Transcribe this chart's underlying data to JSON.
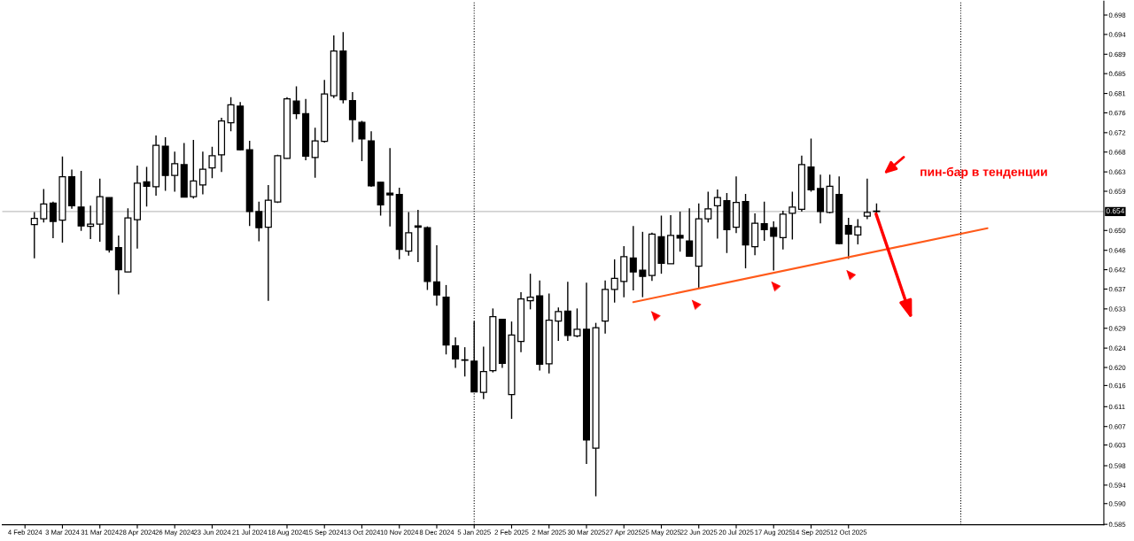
{
  "chart_data": {
    "type": "candlestick",
    "x": [
      "2024-02-11",
      "2024-02-18",
      "2024-02-25",
      "2024-03-03",
      "2024-03-10",
      "2024-03-17",
      "2024-03-24",
      "2024-03-31",
      "2024-04-07",
      "2024-04-14",
      "2024-04-21",
      "2024-04-28",
      "2024-05-05",
      "2024-05-12",
      "2024-05-19",
      "2024-05-26",
      "2024-06-02",
      "2024-06-09",
      "2024-06-16",
      "2024-06-23",
      "2024-06-30",
      "2024-07-07",
      "2024-07-14",
      "2024-07-21",
      "2024-07-28",
      "2024-08-04",
      "2024-08-11",
      "2024-08-18",
      "2024-08-25",
      "2024-09-01",
      "2024-09-08",
      "2024-09-15",
      "2024-09-22",
      "2024-09-29",
      "2024-10-06",
      "2024-10-13",
      "2024-10-20",
      "2024-10-27",
      "2024-11-03",
      "2024-11-10",
      "2024-11-17",
      "2024-11-24",
      "2024-12-01",
      "2024-12-08",
      "2024-12-15",
      "2024-12-22",
      "2024-12-29",
      "2025-01-05",
      "2025-01-12",
      "2025-01-19",
      "2025-01-26",
      "2025-02-02",
      "2025-02-09",
      "2025-02-16",
      "2025-02-23",
      "2025-03-02",
      "2025-03-09",
      "2025-03-16",
      "2025-03-23",
      "2025-03-30",
      "2025-04-06",
      "2025-04-13",
      "2025-04-20",
      "2025-04-27",
      "2025-05-04",
      "2025-05-11",
      "2025-05-18",
      "2025-05-25",
      "2025-06-01",
      "2025-06-08",
      "2025-06-15",
      "2025-06-22",
      "2025-06-29",
      "2025-07-06",
      "2025-07-13",
      "2025-07-20",
      "2025-07-27",
      "2025-08-03",
      "2025-08-10",
      "2025-08-17",
      "2025-08-24",
      "2025-08-31",
      "2025-09-07",
      "2025-09-14",
      "2025-09-21",
      "2025-09-28",
      "2025-10-05",
      "2025-10-12",
      "2025-10-19",
      "2025-10-26",
      "2025-11-02"
    ],
    "ohlc": [
      [
        0.6515,
        0.6543,
        0.644,
        0.6529
      ],
      [
        0.6528,
        0.6594,
        0.652,
        0.6561
      ],
      [
        0.6563,
        0.6566,
        0.6485,
        0.6522
      ],
      [
        0.6525,
        0.6666,
        0.6475,
        0.6621
      ],
      [
        0.6621,
        0.6637,
        0.655,
        0.6557
      ],
      [
        0.6554,
        0.6634,
        0.6501,
        0.6512
      ],
      [
        0.6511,
        0.6557,
        0.6483,
        0.6516
      ],
      [
        0.6516,
        0.6617,
        0.6477,
        0.6577
      ],
      [
        0.6575,
        0.6575,
        0.6453,
        0.6459
      ],
      [
        0.6464,
        0.6491,
        0.636,
        0.6415
      ],
      [
        0.641,
        0.6551,
        0.641,
        0.653
      ],
      [
        0.6526,
        0.6646,
        0.6462,
        0.6607
      ],
      [
        0.661,
        0.6643,
        0.6555,
        0.66
      ],
      [
        0.6599,
        0.6713,
        0.6579,
        0.6691
      ],
      [
        0.6689,
        0.6709,
        0.659,
        0.6624
      ],
      [
        0.6624,
        0.6677,
        0.6588,
        0.665
      ],
      [
        0.6648,
        0.6696,
        0.6576,
        0.6576
      ],
      [
        0.6577,
        0.6703,
        0.6573,
        0.6612
      ],
      [
        0.6603,
        0.6677,
        0.6582,
        0.6638
      ],
      [
        0.6641,
        0.6688,
        0.6618,
        0.6668
      ],
      [
        0.667,
        0.6752,
        0.6632,
        0.6745
      ],
      [
        0.6741,
        0.6798,
        0.6722,
        0.6781
      ],
      [
        0.6778,
        0.6787,
        0.668,
        0.6681
      ],
      [
        0.6681,
        0.6701,
        0.6512,
        0.6544
      ],
      [
        0.6544,
        0.6566,
        0.6478,
        0.6508
      ],
      [
        0.6509,
        0.6603,
        0.6346,
        0.6569
      ],
      [
        0.6565,
        0.667,
        0.6563,
        0.6668
      ],
      [
        0.6662,
        0.6798,
        0.6661,
        0.6794
      ],
      [
        0.6789,
        0.6822,
        0.6749,
        0.6761
      ],
      [
        0.6761,
        0.6794,
        0.6658,
        0.6667
      ],
      [
        0.6664,
        0.673,
        0.6619,
        0.6701
      ],
      [
        0.67,
        0.6836,
        0.6697,
        0.6805
      ],
      [
        0.6801,
        0.6935,
        0.6796,
        0.69
      ],
      [
        0.69,
        0.6942,
        0.6784,
        0.6792
      ],
      [
        0.679,
        0.6809,
        0.6698,
        0.6748
      ],
      [
        0.6742,
        0.6745,
        0.6656,
        0.6705
      ],
      [
        0.6701,
        0.6722,
        0.6599,
        0.6601
      ],
      [
        0.6609,
        0.6609,
        0.6535,
        0.6559
      ],
      [
        0.6585,
        0.6685,
        0.6511,
        0.6581
      ],
      [
        0.6582,
        0.6597,
        0.6438,
        0.646
      ],
      [
        0.6456,
        0.6543,
        0.6446,
        0.6497
      ],
      [
        0.6512,
        0.6548,
        0.6432,
        0.6509
      ],
      [
        0.6508,
        0.6511,
        0.637,
        0.6389
      ],
      [
        0.6388,
        0.6469,
        0.6335,
        0.6359
      ],
      [
        0.6354,
        0.6381,
        0.6227,
        0.6248
      ],
      [
        0.6246,
        0.6265,
        0.6197,
        0.6217
      ],
      [
        0.6215,
        0.6243,
        0.6178,
        0.6214
      ],
      [
        0.6212,
        0.63,
        0.6143,
        0.6144
      ],
      [
        0.6143,
        0.6244,
        0.6128,
        0.6189
      ],
      [
        0.6191,
        0.6329,
        0.6187,
        0.6311
      ],
      [
        0.6305,
        0.6305,
        0.6197,
        0.6207
      ],
      [
        0.6138,
        0.63,
        0.6084,
        0.627
      ],
      [
        0.6256,
        0.6365,
        0.6232,
        0.635
      ],
      [
        0.6346,
        0.6406,
        0.6327,
        0.6354
      ],
      [
        0.6357,
        0.6391,
        0.6191,
        0.6205
      ],
      [
        0.6206,
        0.6362,
        0.6185,
        0.6303
      ],
      [
        0.6301,
        0.6331,
        0.6257,
        0.6322
      ],
      [
        0.6323,
        0.6388,
        0.6257,
        0.6269
      ],
      [
        0.6268,
        0.6329,
        0.6265,
        0.6283
      ],
      [
        0.6283,
        0.6386,
        0.5984,
        0.6037
      ],
      [
        0.6019,
        0.6297,
        0.5912,
        0.6286
      ],
      [
        0.6301,
        0.6391,
        0.6273,
        0.6371
      ],
      [
        0.6371,
        0.6438,
        0.6342,
        0.6396
      ],
      [
        0.6389,
        0.6467,
        0.6354,
        0.6444
      ],
      [
        0.6441,
        0.6512,
        0.6369,
        0.641
      ],
      [
        0.6414,
        0.6499,
        0.6354,
        0.64
      ],
      [
        0.6402,
        0.6497,
        0.639,
        0.6494
      ],
      [
        0.6488,
        0.6535,
        0.6406,
        0.6429
      ],
      [
        0.6428,
        0.6536,
        0.6428,
        0.6491
      ],
      [
        0.6491,
        0.6544,
        0.6455,
        0.6485
      ],
      [
        0.6479,
        0.6551,
        0.6445,
        0.6445
      ],
      [
        0.6423,
        0.6562,
        0.6373,
        0.6528
      ],
      [
        0.6528,
        0.6588,
        0.652,
        0.655
      ],
      [
        0.6557,
        0.6593,
        0.6484,
        0.6575
      ],
      [
        0.6568,
        0.6585,
        0.6452,
        0.6504
      ],
      [
        0.6509,
        0.6622,
        0.6496,
        0.6564
      ],
      [
        0.6566,
        0.6583,
        0.6418,
        0.647
      ],
      [
        0.6466,
        0.654,
        0.6447,
        0.6518
      ],
      [
        0.6517,
        0.6566,
        0.6479,
        0.6504
      ],
      [
        0.6508,
        0.6522,
        0.6413,
        0.6489
      ],
      [
        0.6486,
        0.6546,
        0.646,
        0.6538
      ],
      [
        0.654,
        0.6588,
        0.6482,
        0.6554
      ],
      [
        0.6549,
        0.6668,
        0.6544,
        0.6648
      ],
      [
        0.6643,
        0.6706,
        0.6588,
        0.6592
      ],
      [
        0.6595,
        0.6626,
        0.6518,
        0.6544
      ],
      [
        0.6542,
        0.6626,
        0.654,
        0.66
      ],
      [
        0.6582,
        0.6622,
        0.6471,
        0.6473
      ],
      [
        0.6513,
        0.653,
        0.6439,
        0.6494
      ],
      [
        0.6492,
        0.6527,
        0.6471,
        0.651
      ],
      [
        0.6534,
        0.6617,
        0.6527,
        0.6542
      ],
      [
        0.6544,
        0.6562,
        0.6542,
        0.6545
      ]
    ],
    "series": [
      {
        "type": "line",
        "x": [
          "2025-05-04",
          "2026-01-24"
        ],
        "values": [
          0.6343,
          0.6507
        ],
        "color": "#ff5a1a"
      }
    ],
    "xlim": [
      "2024-01-18",
      "2026-04-21"
    ],
    "ylim": [
      0.5849,
      0.7011
    ],
    "xticks": [
      {
        "value": "2024-02-04",
        "label": "4 Feb 2024"
      },
      {
        "value": "2024-03-03",
        "label": "3 Mar 2024"
      },
      {
        "value": "2024-03-31",
        "label": "31 Mar 2024"
      },
      {
        "value": "2024-04-28",
        "label": "28 Apr 2024"
      },
      {
        "value": "2024-05-26",
        "label": "26 May 2024"
      },
      {
        "value": "2024-06-23",
        "label": "23 Jun 2024"
      },
      {
        "value": "2024-07-21",
        "label": "21 Jul 2024"
      },
      {
        "value": "2024-08-18",
        "label": "18 Aug 2024"
      },
      {
        "value": "2024-09-15",
        "label": "15 Sep 2024"
      },
      {
        "value": "2024-10-13",
        "label": "13 Oct 2024"
      },
      {
        "value": "2024-11-10",
        "label": "10 Nov 2024"
      },
      {
        "value": "2024-12-08",
        "label": "8 Dec 2024"
      },
      {
        "value": "2025-01-05",
        "label": "5 Jan 2025"
      },
      {
        "value": "2025-02-02",
        "label": "2 Feb 2025"
      },
      {
        "value": "2025-03-02",
        "label": "2 Mar 2025"
      },
      {
        "value": "2025-03-30",
        "label": "30 Mar 2025"
      },
      {
        "value": "2025-04-27",
        "label": "27 Apr 2025"
      },
      {
        "value": "2025-05-25",
        "label": "25 May 2025"
      },
      {
        "value": "2025-06-22",
        "label": "22 Jun 2025"
      },
      {
        "value": "2025-07-20",
        "label": "20 Jul 2025"
      },
      {
        "value": "2025-08-17",
        "label": "17 Aug 2025"
      },
      {
        "value": "2025-09-14",
        "label": "14 Sep 2025"
      },
      {
        "value": "2025-10-12",
        "label": "12 Oct 2025"
      }
    ],
    "yticks": [
      {
        "value": 0.698,
        "label": "0.698"
      },
      {
        "value": 0.6937,
        "label": "0.694"
      },
      {
        "value": 0.6893,
        "label": "0.689"
      },
      {
        "value": 0.685,
        "label": "0.685"
      },
      {
        "value": 0.6806,
        "label": "0.681"
      },
      {
        "value": 0.6763,
        "label": "0.676"
      },
      {
        "value": 0.6719,
        "label": "0.672"
      },
      {
        "value": 0.6676,
        "label": "0.668"
      },
      {
        "value": 0.6632,
        "label": "0.663"
      },
      {
        "value": 0.6589,
        "label": "0.659"
      },
      {
        "value": 0.6502,
        "label": "0.650"
      },
      {
        "value": 0.6458,
        "label": "0.646"
      },
      {
        "value": 0.6415,
        "label": "0.642"
      },
      {
        "value": 0.6372,
        "label": "0.637"
      },
      {
        "value": 0.6328,
        "label": "0.633"
      },
      {
        "value": 0.6285,
        "label": "0.629"
      },
      {
        "value": 0.6241,
        "label": "0.624"
      },
      {
        "value": 0.6198,
        "label": "0.620"
      },
      {
        "value": 0.6158,
        "label": "0.616"
      },
      {
        "value": 0.6111,
        "label": "0.611"
      },
      {
        "value": 0.6067,
        "label": "0.607"
      },
      {
        "value": 0.6026,
        "label": "0.603"
      },
      {
        "value": 0.598,
        "label": "0.598"
      },
      {
        "value": 0.5937,
        "label": "0.594"
      },
      {
        "value": 0.5896,
        "label": "0.590"
      },
      {
        "value": 0.585,
        "label": "0.585"
      }
    ],
    "ref_lines": [
      {
        "axis": "y",
        "value": 0.6544,
        "label": "0.654",
        "color": "#c0c0c0",
        "line_style": "solid"
      },
      {
        "axis": "x",
        "value": "2025-01-05",
        "color": "#000000",
        "line_style": "dotted"
      },
      {
        "axis": "x",
        "value": "2026-01-04",
        "color": "#000000",
        "line_style": "dotted"
      }
    ],
    "annotations": [
      "пин-бар в тенденции"
    ]
  }
}
